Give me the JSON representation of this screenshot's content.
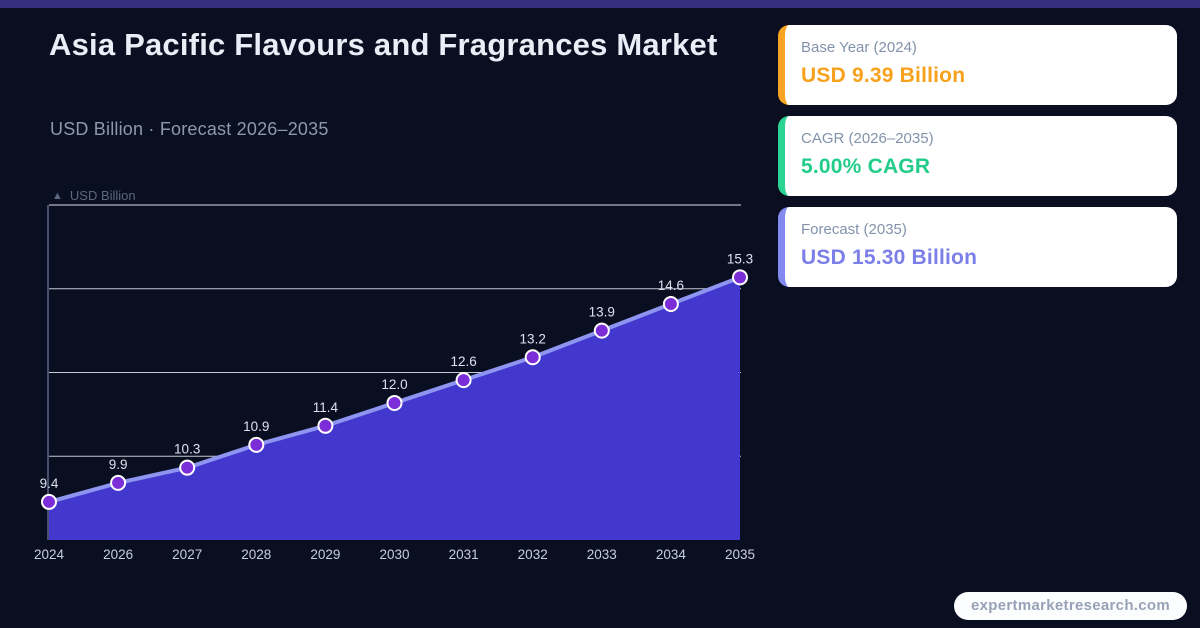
{
  "page": {
    "title": "Asia Pacific Flavours and Fragrances Market",
    "subtitle": "USD Billion · Forecast 2026–2035"
  },
  "stats": [
    {
      "label": "Base Year (2024)",
      "value": "USD 9.39 Billion",
      "color": "#f7a11c",
      "accent": "#f7a425"
    },
    {
      "label": "CAGR (2026–2035)",
      "value": "5.00% CAGR",
      "color": "#22cd8a",
      "accent": "#2bd492"
    },
    {
      "label": "Forecast (2035)",
      "value": "USD 15.30 Billion",
      "color": "#7b7fe7",
      "accent": "#8489ef"
    }
  ],
  "footer": {
    "brand": "expertmarketresearch.com"
  },
  "chart_data": {
    "type": "area",
    "title": "",
    "axis_icon": "▲",
    "axis_label": "USD Billion",
    "categories": [
      "2024",
      "2026",
      "2027",
      "2028",
      "2029",
      "2030",
      "2031",
      "2032",
      "2033",
      "2034",
      "2035"
    ],
    "values": [
      9.4,
      9.9,
      10.3,
      10.9,
      11.4,
      12.0,
      12.6,
      13.2,
      13.9,
      14.6,
      15.3
    ],
    "value_labels": [
      "9.4",
      "9.9",
      "10.3",
      "10.9",
      "11.4",
      "12.0",
      "12.6",
      "13.2",
      "13.9",
      "14.6",
      "15.3"
    ],
    "xlabel": "",
    "ylabel": "USD Billion",
    "ylim": [
      8.4,
      17.2
    ],
    "grid": true,
    "legend": "none",
    "colors": {
      "background": "#0a0e21",
      "area": "#4338ce",
      "line": "#8d95f0",
      "marker": "#7b2dd8",
      "marker_ring": "#ffffff",
      "grid": "#e6eaf4",
      "axis": "#46526b",
      "value_label": "#dce1ec",
      "tick_label": "#c7cedd"
    }
  }
}
